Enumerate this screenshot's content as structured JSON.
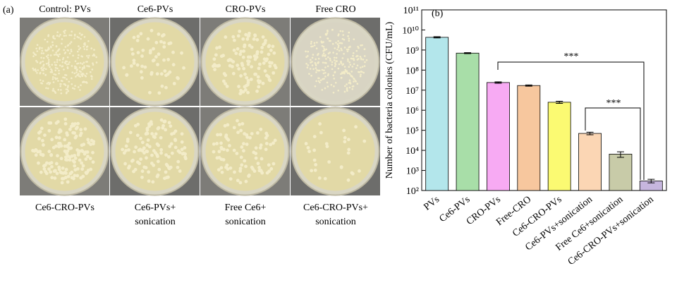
{
  "panel_a": {
    "label": "(a)",
    "top_labels": [
      [
        "Control: PVs"
      ],
      [
        "Ce6-PVs"
      ],
      [
        "CRO-PVs"
      ],
      [
        "Free CRO"
      ]
    ],
    "bottom_labels": [
      [
        "Ce6-CRO-PVs"
      ],
      [
        "Ce6-PVs+",
        "sonication"
      ],
      [
        "Free Ce6+",
        "sonication"
      ],
      [
        "Ce6-CRO-PVs+",
        "sonication"
      ]
    ]
  },
  "chart_data": {
    "type": "bar",
    "panel_label": "(b)",
    "y_label": "Number of bacteria colonies (CFU/mL)",
    "log_scale": true,
    "categories": [
      "PVs",
      "Ce6-PVs",
      "CRO-PVs",
      "Free-CRO",
      "Ce6-CRO-PVs",
      "Ce6-PVs+sonication",
      "Free Ce6+sonication",
      "Ce6-CRO-PVs+sonication"
    ],
    "values": [
      4300000000,
      700000000,
      24000000,
      17000000,
      2500000,
      70000,
      6500,
      300
    ],
    "errors": [
      300000000,
      40000000,
      2000000,
      1200000,
      300000,
      10000,
      2000,
      60
    ],
    "colors": [
      "#b3e6eb",
      "#a8dea8",
      "#f7aaf3",
      "#f7c79e",
      "#fbfa72",
      "#fbd6b4",
      "#c8cba8",
      "#c6b6de"
    ],
    "ylim": [
      100,
      100000000000
    ],
    "yticks": [
      {
        "value": 100,
        "label": "10²"
      },
      {
        "value": 1000,
        "label": "10³"
      },
      {
        "value": 10000,
        "label": "10⁴"
      },
      {
        "value": 100000,
        "label": "10⁵"
      },
      {
        "value": 1000000,
        "label": "10⁶"
      },
      {
        "value": 10000000,
        "label": "10⁷"
      },
      {
        "value": 100000000,
        "label": "10⁸"
      },
      {
        "value": 1000000000,
        "label": "10⁹"
      },
      {
        "value": 10000000000,
        "label": "10¹⁰"
      },
      {
        "value": 100000000000,
        "label": "10¹¹"
      }
    ],
    "annotations": [
      "***",
      "***"
    ]
  }
}
